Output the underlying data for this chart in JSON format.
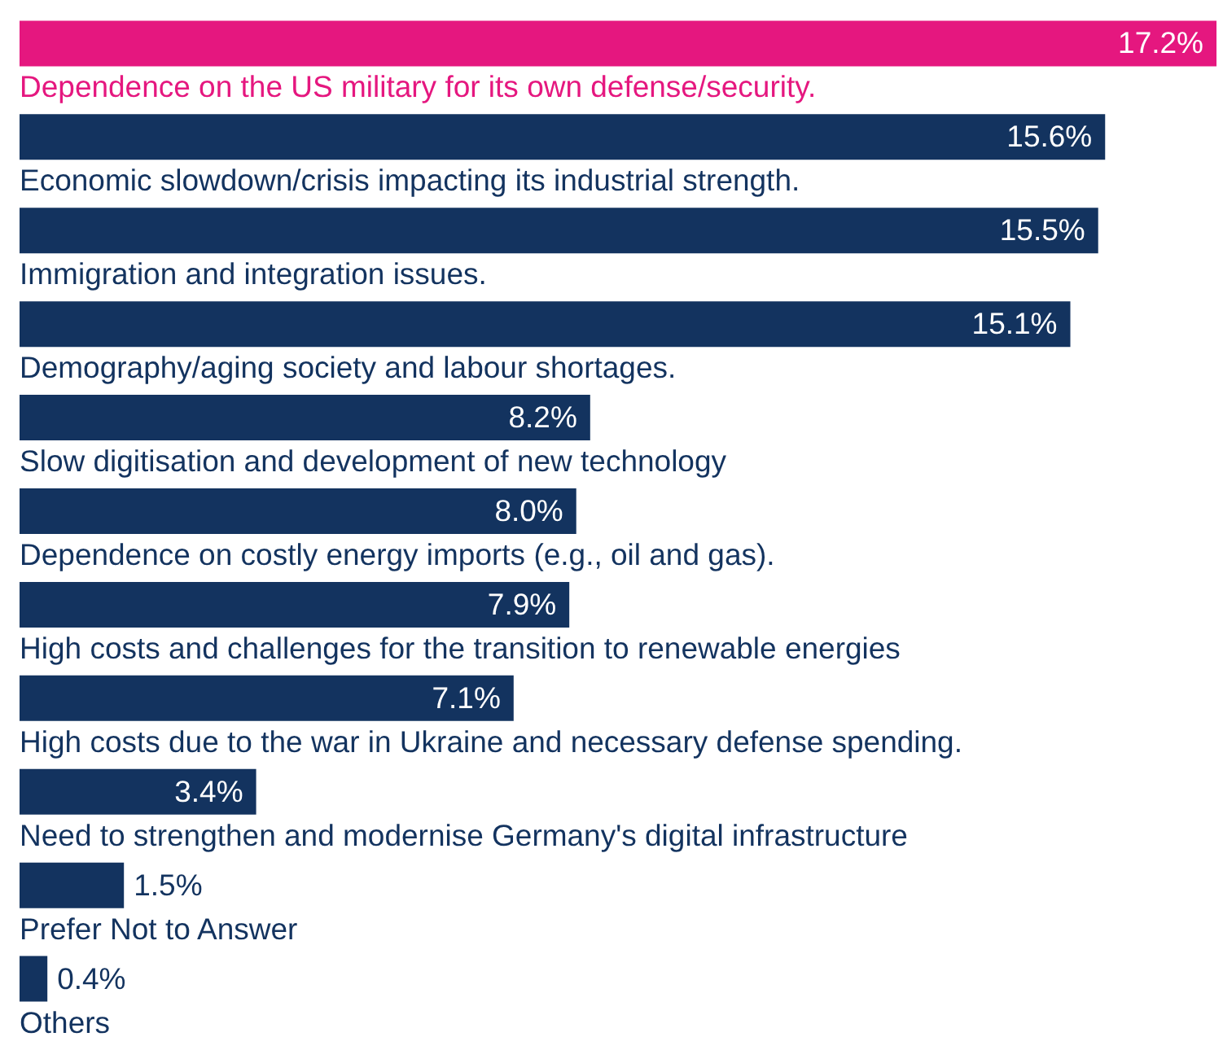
{
  "chart_data": {
    "type": "bar",
    "orientation": "horizontal",
    "categories": [
      "Dependence on the US military for its own defense/security.",
      "Economic slowdown/crisis impacting its industrial strength.",
      "Immigration and integration issues.",
      "Demography/aging society and labour shortages.",
      "Slow digitisation and development of new technology",
      "Dependence on costly energy imports (e.g., oil and gas).",
      "High costs and challenges for the transition to renewable energies",
      "High costs due to the war in Ukraine and necessary defense spending.",
      "Need to strengthen and modernise Germany's digital infrastructure",
      "Prefer Not to Answer",
      "Others"
    ],
    "values": [
      17.2,
      15.6,
      15.5,
      15.1,
      8.2,
      8.0,
      7.9,
      7.1,
      3.4,
      1.5,
      0.4
    ],
    "value_labels": [
      "17.2%",
      "15.6%",
      "15.5%",
      "15.1%",
      "8.2%",
      "8.0%",
      "7.9%",
      "7.1%",
      "3.4%",
      "1.5%",
      "0.4%"
    ],
    "colors": [
      "#e5177f",
      "#13335f",
      "#13335f",
      "#13335f",
      "#13335f",
      "#13335f",
      "#13335f",
      "#13335f",
      "#13335f",
      "#13335f",
      "#13335f"
    ]
  }
}
